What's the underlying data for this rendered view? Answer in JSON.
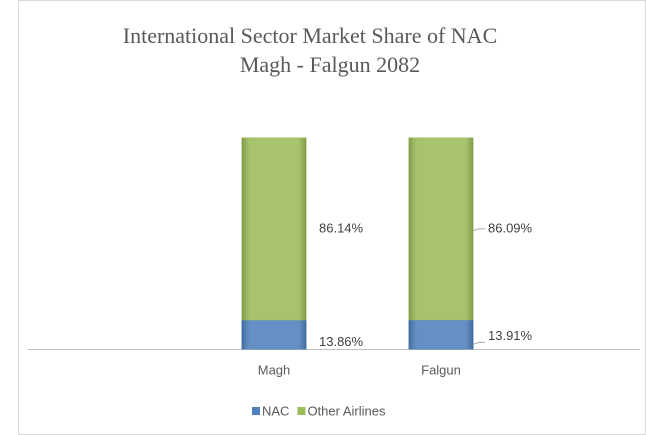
{
  "chart_data": {
    "type": "stacked_bar",
    "title": "International Sector Market Share of NAC",
    "subtitle": "Magh - Falgun 2082",
    "categories": [
      "Magh",
      "Falgun"
    ],
    "series": [
      {
        "name": "NAC",
        "color": "#4f81bd",
        "values": [
          13.86,
          13.91
        ],
        "value_labels": [
          "13.86%",
          "13.91%"
        ]
      },
      {
        "name": "Other Airlines",
        "color": "#9bbb59",
        "values": [
          86.14,
          86.09
        ],
        "value_labels": [
          "86.14%",
          "86.09%"
        ]
      }
    ],
    "legend": "bottom"
  }
}
